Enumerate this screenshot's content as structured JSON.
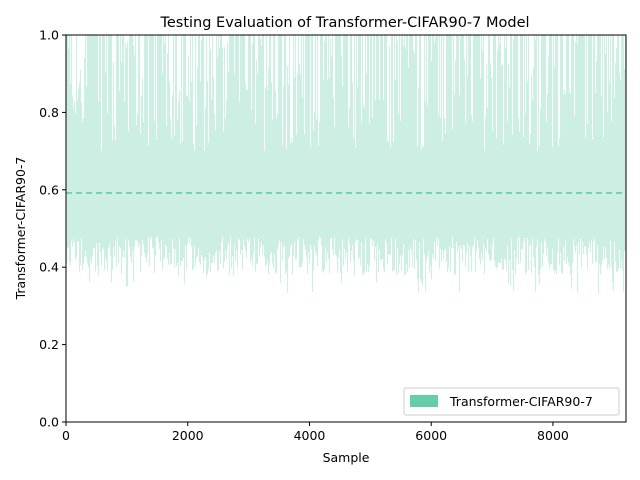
{
  "chart_data": {
    "type": "area",
    "title": "Testing Evaluation of Transformer-CIFAR90-7 Model",
    "xlabel": "Sample",
    "ylabel": "Transformer-CIFAR90-7",
    "xlim": [
      0,
      9200
    ],
    "ylim": [
      0,
      1.0
    ],
    "xticks": [
      0,
      2000,
      4000,
      6000,
      8000
    ],
    "xtick_labels": [
      "0",
      "2000",
      "4000",
      "6000",
      "8000"
    ],
    "yticks": [
      0.0,
      0.2,
      0.4,
      0.6,
      0.8,
      1.0
    ],
    "ytick_labels": [
      "0.0",
      "0.2",
      "0.4",
      "0.6",
      "0.8",
      "1.0"
    ],
    "grid": false,
    "legend_position": "lower right",
    "series": [
      {
        "name": "Transformer-CIFAR90-7",
        "color": "#66CDAA",
        "fill_alpha": 0.32,
        "mean": 0.592,
        "n_samples": 9200,
        "typical_lower_range": [
          0.38,
          0.48
        ],
        "typical_upper_range": [
          0.7,
          1.0
        ],
        "min_lower_observed": 0.33
      }
    ],
    "reference_lines": [
      {
        "name": "mean",
        "value": 0.592,
        "style": "dashed",
        "color": "#66CDAA"
      }
    ]
  }
}
